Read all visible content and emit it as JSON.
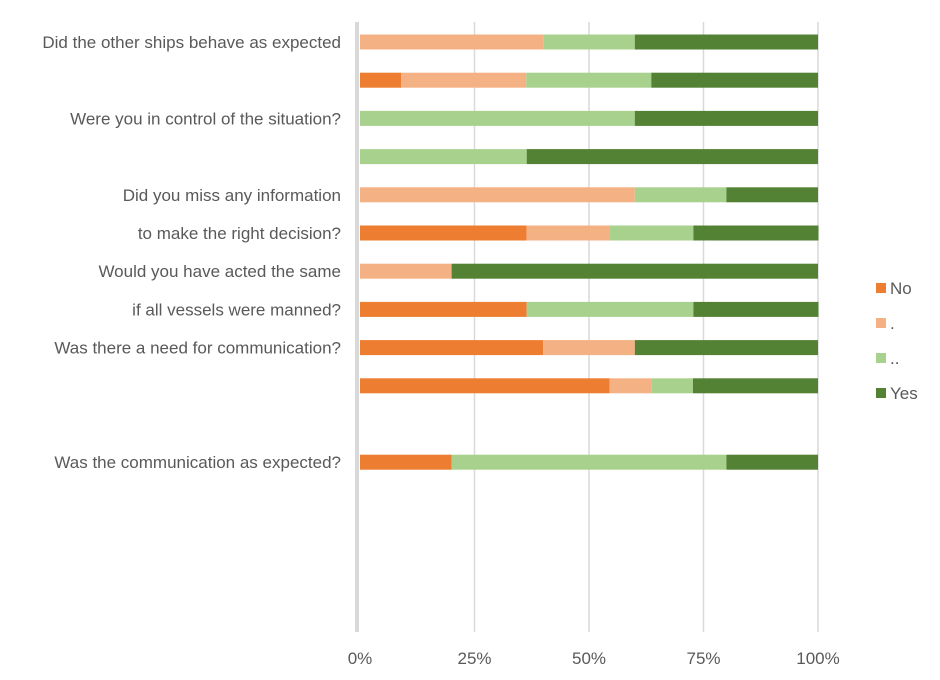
{
  "chart_data": {
    "type": "bar",
    "orientation": "horizontal",
    "stacked": "percent",
    "x_ticks": [
      "0%",
      "25%",
      "50%",
      "75%",
      "100%"
    ],
    "xlim": [
      0,
      100
    ],
    "grid": true,
    "legend_position": "right",
    "row_labels": [
      "Did the other ships behave as expected",
      "",
      "Were you in control of the situation?",
      "",
      "Did you miss any information",
      "to make the right decision?",
      "Would you have acted the same",
      "if all vessels were manned?",
      "Was there a need for communication?",
      "",
      "",
      "Was the communication as expected?"
    ],
    "series": [
      {
        "name": "No",
        "color": "#ed7d31",
        "values": [
          0,
          9,
          0,
          0,
          0,
          36.4,
          0,
          36.4,
          40,
          54.5,
          0,
          20
        ]
      },
      {
        "name": ".",
        "color": "#f4b183",
        "values": [
          40,
          27.3,
          0,
          0,
          60,
          18.2,
          20,
          0,
          20,
          9.1,
          0,
          0
        ]
      },
      {
        "name": "..",
        "color": "#a9d18e",
        "values": [
          20,
          27.3,
          60,
          36.4,
          20,
          18.2,
          0,
          36.4,
          0,
          9.1,
          0,
          60
        ]
      },
      {
        "name": "Yes",
        "color": "#548235",
        "values": [
          40,
          36.4,
          40,
          63.6,
          20,
          27.3,
          80,
          27.3,
          40,
          27.3,
          0,
          20
        ]
      }
    ]
  }
}
